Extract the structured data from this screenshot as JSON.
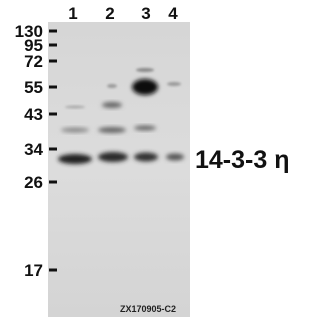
{
  "lanes": [
    "1",
    "2",
    "3",
    "4"
  ],
  "markers": [
    "130",
    "95",
    "72",
    "55",
    "43",
    "34",
    "26",
    "17"
  ],
  "protein_label": "14-3-3 η",
  "code": "ZX170905-C2"
}
